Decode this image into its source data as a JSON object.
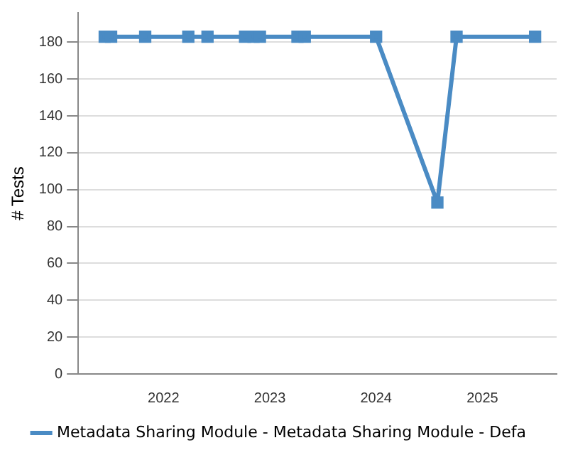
{
  "chart_data": {
    "type": "line",
    "ylabel": "# Tests",
    "x": [
      "2021-06-13",
      "2021-07-05",
      "2021-10-30",
      "2022-03-27",
      "2022-06-01",
      "2022-10-08",
      "2022-11-06",
      "2022-11-28",
      "2023-04-06",
      "2023-05-01",
      "2024-01-01",
      "2024-07-30",
      "2024-10-04",
      "2025-07-01"
    ],
    "series": [
      {
        "name": "Metadata Sharing Module - Metadata Sharing Module - Defa",
        "color": "#4a8bc4",
        "values": [
          183,
          183,
          183,
          183,
          183,
          183,
          183,
          183,
          183,
          183,
          183,
          93,
          183,
          183
        ]
      }
    ],
    "xlim": [
      "2021-03-14",
      "2025-09-13"
    ],
    "xticks": [
      "2022",
      "2023",
      "2024",
      "2025"
    ],
    "ylim": [
      0,
      196
    ],
    "yticks": [
      0,
      20,
      40,
      60,
      80,
      100,
      120,
      140,
      160,
      180
    ],
    "grid": "y",
    "legend": "bottom",
    "marker": "square",
    "line_style": "solid"
  }
}
